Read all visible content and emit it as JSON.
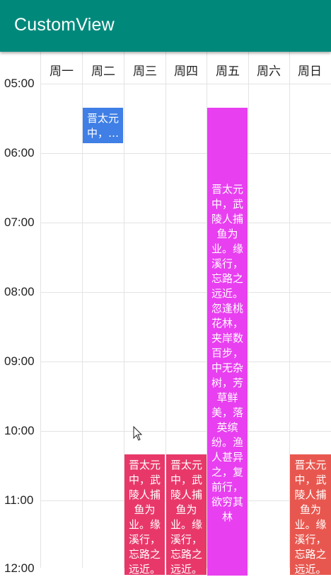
{
  "app": {
    "title": "CustomView"
  },
  "days": [
    "周一",
    "周二",
    "周三",
    "周四",
    "周五",
    "周六",
    "周日"
  ],
  "times": [
    "05:00",
    "06:00",
    "07:00",
    "08:00",
    "09:00",
    "10:00",
    "11:00",
    "12:00"
  ],
  "events": [
    {
      "text": "晋太元中，…",
      "day": "周二",
      "color": "#3f7fe6"
    },
    {
      "text": "晋太元中，武陵人捕鱼为业。缘溪行，忘路之远近。忽逢桃花林，夹岸数百步，中无杂树，芳草鲜美，落英缤纷。渔人甚异之，复前行，欲穷其林",
      "day": "周五",
      "color": "#e83ff0"
    },
    {
      "text": "晋太元中，武陵人捕鱼为业。缘溪行，忘路之远近。",
      "day": "周三",
      "color": "#e8386a"
    },
    {
      "text": "晋太元中，武陵人捕鱼为业。缘溪行，忘路之远近。",
      "day": "周四",
      "color": "#e8386a"
    },
    {
      "text": "晋太元中，武陵人捕鱼为业。缘溪行，忘路之远近。",
      "day": "周日",
      "color": "#e8574f"
    }
  ]
}
